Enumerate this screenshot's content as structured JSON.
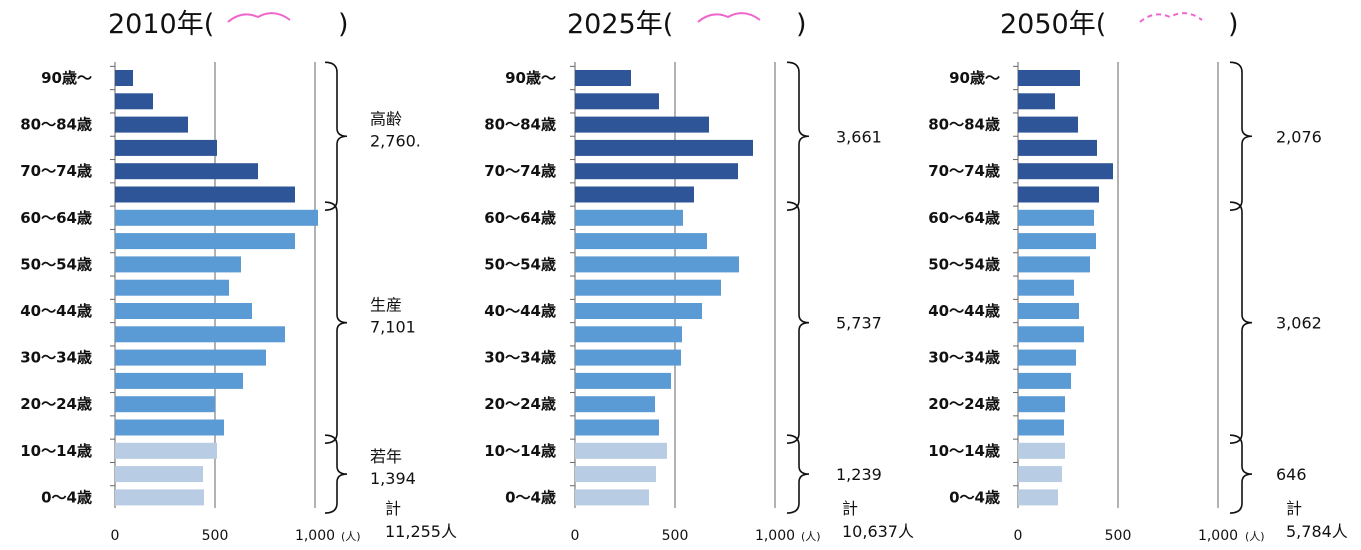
{
  "chart_data": [
    {
      "type": "bar",
      "title": "2010年(",
      "title_close": ")",
      "xlim": [
        0,
        1000
      ],
      "xticks": [
        "0",
        "500",
        "1,000"
      ],
      "unit": "(人)",
      "category_labels": [
        "0〜4歳",
        "10〜14歳",
        "20〜24歳",
        "30〜34歳",
        "40〜44歳",
        "50〜54歳",
        "60〜64歳",
        "70〜74歳",
        "80〜84歳",
        "90歳〜"
      ],
      "values": [
        445,
        440,
        510,
        545,
        500,
        640,
        755,
        850,
        685,
        570,
        630,
        900,
        1015,
        900,
        715,
        510,
        365,
        190,
        90
      ],
      "bar_groups": [
        "young",
        "young",
        "young",
        "working",
        "working",
        "working",
        "working",
        "working",
        "working",
        "working",
        "working",
        "working",
        "working",
        "elderly",
        "elderly",
        "elderly",
        "elderly",
        "elderly",
        "elderly"
      ],
      "groups": [
        {
          "label": "若年",
          "value": "1,394"
        },
        {
          "label": "生産",
          "value": "7,101"
        },
        {
          "label": "高齢",
          "value": "2,760."
        }
      ],
      "total_label": "計",
      "total_value": "11,255人"
    },
    {
      "type": "bar",
      "title": "2025年(",
      "title_close": ")",
      "xlim": [
        0,
        1000
      ],
      "xticks": [
        "0",
        "500",
        "1,000"
      ],
      "unit": "(人)",
      "category_labels": [
        "0〜4歳",
        "10〜14歳",
        "20〜24歳",
        "30〜34歳",
        "40〜44歳",
        "50〜54歳",
        "60〜64歳",
        "70〜74歳",
        "80〜84歳",
        "90歳〜"
      ],
      "values": [
        370,
        405,
        460,
        420,
        400,
        480,
        530,
        535,
        635,
        730,
        820,
        660,
        540,
        595,
        815,
        890,
        670,
        420,
        280
      ],
      "bar_groups": [
        "young",
        "young",
        "young",
        "working",
        "working",
        "working",
        "working",
        "working",
        "working",
        "working",
        "working",
        "working",
        "working",
        "elderly",
        "elderly",
        "elderly",
        "elderly",
        "elderly",
        "elderly"
      ],
      "groups": [
        {
          "label": "",
          "value": "1,239"
        },
        {
          "label": "",
          "value": "5,737"
        },
        {
          "label": "",
          "value": "3,661"
        }
      ],
      "total_label": "計",
      "total_value": "10,637人"
    },
    {
      "type": "bar",
      "title": "2050年(",
      "title_close": ")",
      "xlim": [
        0,
        1000
      ],
      "xticks": [
        "0",
        "500",
        "1,000"
      ],
      "unit": "(人)",
      "category_labels": [
        "0〜4歳",
        "10〜14歳",
        "20〜24歳",
        "30〜34歳",
        "40〜44歳",
        "50〜54歳",
        "60〜64歳",
        "70〜74歳",
        "80〜84歳",
        "90歳〜"
      ],
      "values": [
        200,
        220,
        235,
        230,
        235,
        265,
        290,
        330,
        305,
        280,
        360,
        390,
        380,
        405,
        475,
        395,
        300,
        185,
        310
      ],
      "bar_groups": [
        "young",
        "young",
        "young",
        "working",
        "working",
        "working",
        "working",
        "working",
        "working",
        "working",
        "working",
        "working",
        "working",
        "elderly",
        "elderly",
        "elderly",
        "elderly",
        "elderly",
        "elderly"
      ],
      "groups": [
        {
          "label": "",
          "value": "646"
        },
        {
          "label": "",
          "value": "3,062"
        },
        {
          "label": "",
          "value": "2,076"
        }
      ],
      "total_label": "計",
      "total_value": "5,784人"
    }
  ],
  "colors": {
    "young": "#b8cce4",
    "working": "#5b9bd5",
    "elderly": "#2e5597",
    "grid": "#999999",
    "axis": "#666666",
    "bracket": "#111111",
    "decoration_solid": "#ee66cc",
    "decoration_dashed": "#ee66cc"
  },
  "decorations": [
    "arc-solid",
    "arc-solid",
    "arc-dashed"
  ]
}
